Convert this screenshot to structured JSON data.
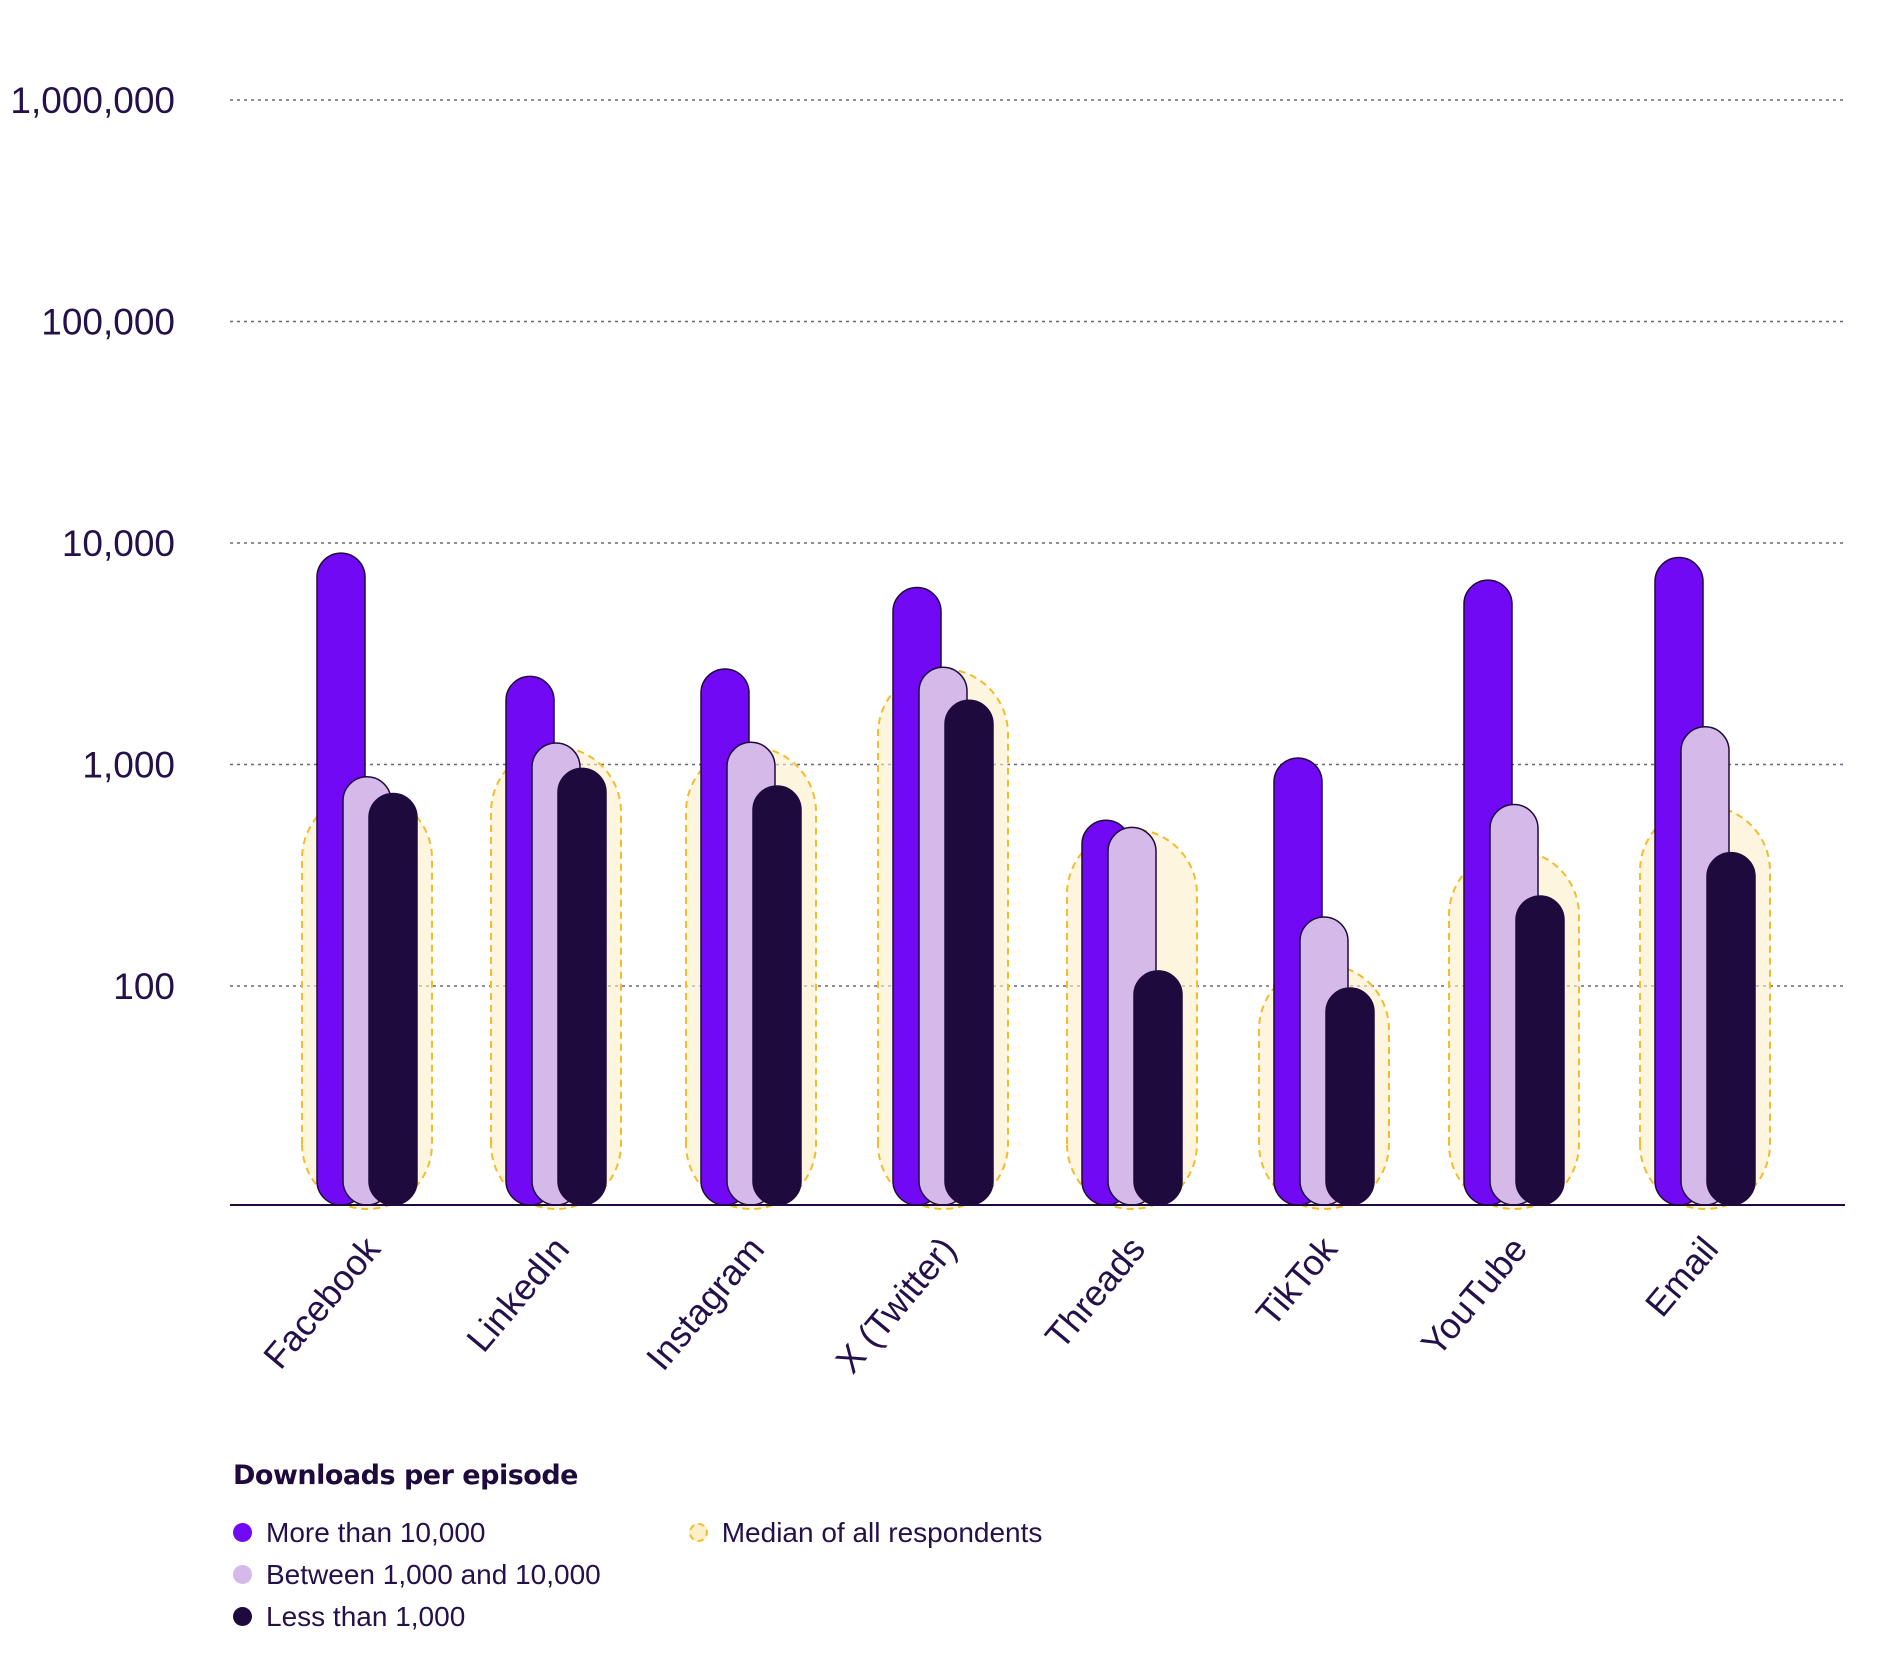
{
  "chart_data": {
    "type": "bar",
    "y_scale": "log",
    "ylim": [
      10,
      1000000
    ],
    "y_ticks": [
      100,
      1000,
      10000,
      100000,
      1000000
    ],
    "y_tick_labels": [
      "100",
      "1,000",
      "10,000",
      "100,000",
      "1,000,000"
    ],
    "grid": true,
    "categories": [
      "Facebook",
      "LinkedIn",
      "Instagram",
      "X (Twitter)",
      "Threads",
      "TikTok",
      "YouTube",
      "Email"
    ],
    "series": [
      {
        "name": "More than 10,000",
        "color": "#7209f5",
        "values": [
          9000,
          2500,
          2700,
          6300,
          560,
          1070,
          6800,
          8600
        ]
      },
      {
        "name": "Between 1,000 and 10,000",
        "color": "#d5b9e8",
        "values": [
          880,
          1250,
          1260,
          2750,
          520,
          205,
          660,
          1480
        ]
      },
      {
        "name": "Less than 1,000",
        "color": "#1e0a3c",
        "values": [
          740,
          960,
          800,
          1950,
          117,
          98,
          255,
          400
        ]
      }
    ],
    "median": {
      "name": "Median of all respondents",
      "color": "#f2bd2c",
      "values": [
        740,
        1200,
        1200,
        2700,
        510,
        125,
        410,
        650
      ]
    },
    "legend_title": "Downloads per episode",
    "legend_position": "bottom-left"
  }
}
